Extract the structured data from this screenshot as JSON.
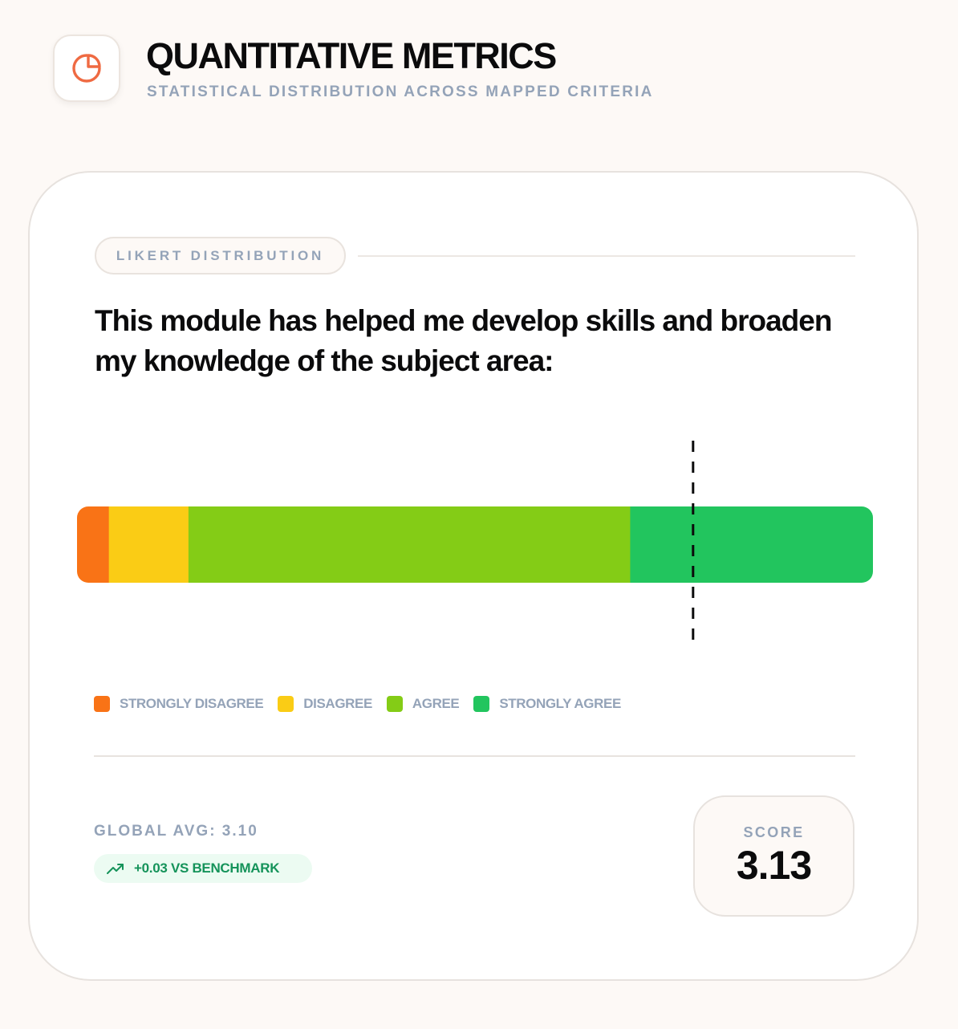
{
  "header": {
    "title": "QUANTITATIVE METRICS",
    "subtitle": "STATISTICAL DISTRIBUTION ACROSS MAPPED CRITERIA",
    "icon": "pie-chart-icon",
    "icon_color": "#ef6a42"
  },
  "card": {
    "section_label": "LIKERT DISTRIBUTION",
    "question": "This module has helped me develop skills and broaden my knowledge of the subject area:"
  },
  "chart_data": {
    "type": "bar",
    "orientation": "horizontal-stacked",
    "unit": "percent",
    "categories": [
      "STRONGLY DISAGREE",
      "DISAGREE",
      "AGREE",
      "STRONGLY AGREE"
    ],
    "values": [
      4,
      10,
      55.5,
      30.5
    ],
    "colors": [
      "#f97316",
      "#facc15",
      "#84cc16",
      "#22c55e"
    ],
    "marker": {
      "style": "dashed vertical line",
      "position_percent": 77.4
    },
    "legend_position": "bottom-left",
    "grid": false
  },
  "stats": {
    "global_avg": "GLOBAL AVG: 3.10",
    "benchmark": "+0.03 VS BENCHMARK",
    "benchmark_icon": "trending-up-icon",
    "benchmark_color": "#15935a",
    "score_label": "SCORE",
    "score_value": "3.13"
  }
}
